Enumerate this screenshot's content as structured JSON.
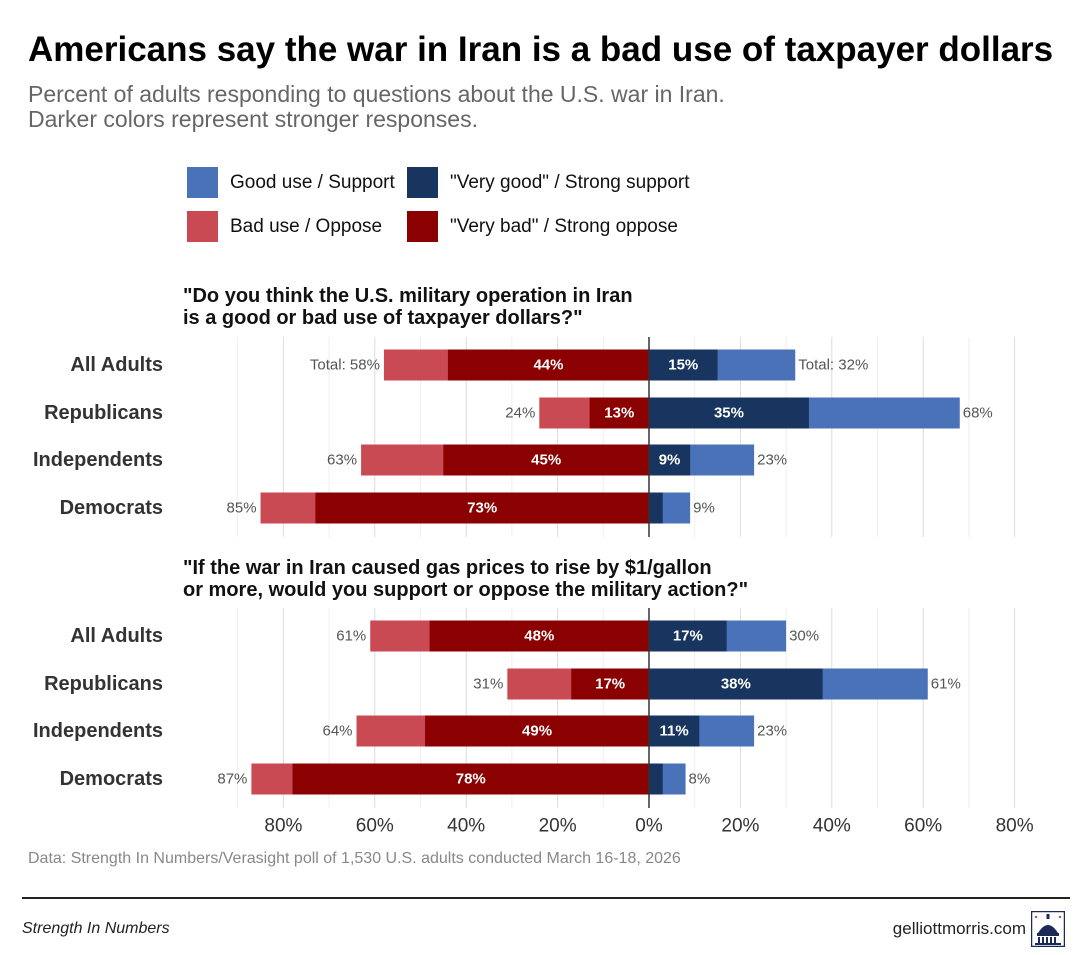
{
  "title": "Americans say the war in Iran is a bad use of taxpayer dollars",
  "subtitle": [
    "Percent of adults responding to questions about the U.S. war in Iran.",
    "Darker colors represent stronger responses."
  ],
  "legend": [
    {
      "label": "Good use / Support",
      "color": "#4a72b8"
    },
    {
      "label": "\"Very good\" / Strong support",
      "color": "#17355e"
    },
    {
      "label": "Bad use / Oppose",
      "color": "#c94a52"
    },
    {
      "label": "\"Very bad\" / Strong oppose",
      "color": "#8b0000"
    }
  ],
  "colors": {
    "oppose": "#c94a52",
    "strong_oppose": "#8b0000",
    "support": "#4a72b8",
    "strong_support": "#17355e",
    "grid": "#dddddd",
    "axis": "#333333"
  },
  "chart_data": [
    {
      "type": "bar",
      "title": [
        "\"Do you think the U.S. military operation in Iran",
        "is a good or bad use of taxpayer dollars?\""
      ],
      "categories": [
        "All Adults",
        "Republicans",
        "Independents",
        "Democrats"
      ],
      "series": [
        {
          "name": "Bad use / Oppose",
          "values": [
            58,
            24,
            63,
            85
          ],
          "labels": [
            "Total: 58%",
            "24%",
            "63%",
            "85%"
          ]
        },
        {
          "name": "\"Very bad\" / Strong oppose",
          "values": [
            44,
            13,
            45,
            73
          ],
          "labels": [
            "44%",
            "13%",
            "45%",
            "73%"
          ]
        },
        {
          "name": "Good use / Support",
          "values": [
            32,
            68,
            23,
            9
          ],
          "labels": [
            "Total: 32%",
            "68%",
            "23%",
            "9%"
          ]
        },
        {
          "name": "\"Very good\" / Strong support",
          "values": [
            15,
            35,
            9,
            3
          ],
          "labels": [
            "15%",
            "35%",
            "9%",
            ""
          ]
        }
      ]
    },
    {
      "type": "bar",
      "title": [
        "\"If the war in Iran caused gas prices to rise by $1/gallon",
        "or more, would you support or oppose the military action?\""
      ],
      "categories": [
        "All Adults",
        "Republicans",
        "Independents",
        "Democrats"
      ],
      "series": [
        {
          "name": "Bad use / Oppose",
          "values": [
            61,
            31,
            64,
            87
          ],
          "labels": [
            "61%",
            "31%",
            "64%",
            "87%"
          ]
        },
        {
          "name": "\"Very bad\" / Strong oppose",
          "values": [
            48,
            17,
            49,
            78
          ],
          "labels": [
            "48%",
            "17%",
            "49%",
            "78%"
          ]
        },
        {
          "name": "Good use / Support",
          "values": [
            30,
            61,
            23,
            8
          ],
          "labels": [
            "30%",
            "61%",
            "23%",
            "8%"
          ]
        },
        {
          "name": "\"Very good\" / Strong support",
          "values": [
            17,
            38,
            11,
            3
          ],
          "labels": [
            "17%",
            "38%",
            "11%",
            ""
          ]
        }
      ]
    }
  ],
  "axis": {
    "ticks": [
      -80,
      -60,
      -40,
      -20,
      0,
      20,
      40,
      60,
      80
    ],
    "tick_labels": [
      "80%",
      "60%",
      "40%",
      "20%",
      "0%",
      "20%",
      "40%",
      "60%",
      "80%"
    ],
    "xlim": [
      -88,
      80
    ]
  },
  "source": "Data: Strength In Numbers/Verasight poll of 1,530 U.S. adults conducted March 16-18, 2026",
  "footer": {
    "left": "Strength In Numbers",
    "right": "gelliottmorris.com",
    "logo_icon": "capitol-dome-icon"
  }
}
